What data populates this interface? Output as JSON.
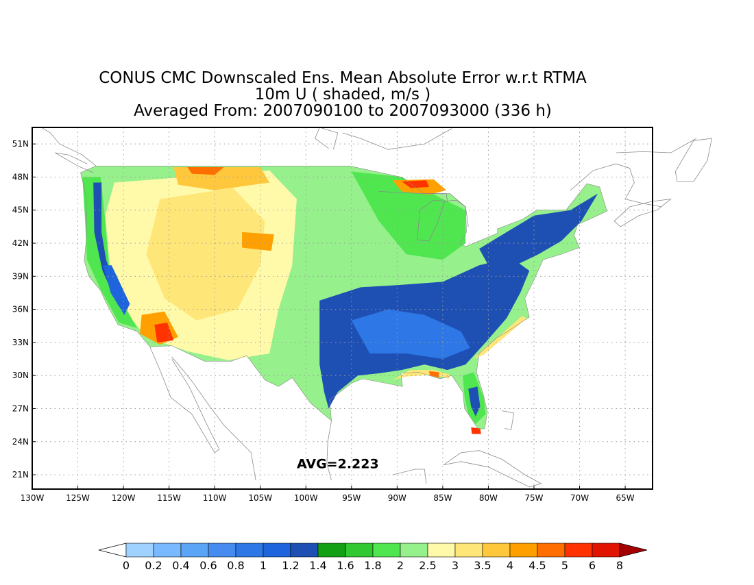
{
  "title": {
    "line1": "CONUS CMC Downscaled Ens. Mean Absolute Error w.r.t RTMA",
    "line2": "10m U ( shaded, m/s )",
    "line3": "Averaged From: 2007090100 to 2007093000 (336 h)"
  },
  "map": {
    "region": "CONUS",
    "lon_labels": [
      "130W",
      "125W",
      "120W",
      "115W",
      "110W",
      "105W",
      "100W",
      "95W",
      "90W",
      "85W",
      "80W",
      "75W",
      "70W",
      "65W"
    ],
    "lat_labels": [
      "51N",
      "48N",
      "45N",
      "42N",
      "39N",
      "36N",
      "33N",
      "30N",
      "27N",
      "24N",
      "21N"
    ],
    "lon_values": [
      -130,
      -125,
      -120,
      -115,
      -110,
      -105,
      -100,
      -95,
      -90,
      -85,
      -80,
      -75,
      -70,
      -65
    ],
    "lat_values": [
      51,
      48,
      45,
      42,
      39,
      36,
      33,
      30,
      27,
      24,
      21
    ],
    "lon_range": [
      -130,
      -62
    ],
    "lat_range": [
      19.7,
      52.5
    ],
    "grid": "dotted",
    "average_label": "AVG=2.223"
  },
  "colorbar": {
    "labels": [
      "0",
      "0.2",
      "0.4",
      "0.6",
      "0.8",
      "1",
      "1.2",
      "1.4",
      "1.6",
      "1.8",
      "2",
      "2.5",
      "3",
      "3.5",
      "4",
      "4.5",
      "5",
      "6",
      "8"
    ],
    "under_color": "#ffffff",
    "colors": [
      "#a0d2ff",
      "#78b9ff",
      "#5aa5f5",
      "#468cf0",
      "#2d78e6",
      "#1e64dc",
      "#1e50b4",
      "#14a014",
      "#32c832",
      "#50e650",
      "#96f08c",
      "#fffaaa",
      "#ffe678",
      "#ffc83c",
      "#ffa000",
      "#ff6e00",
      "#ff3200",
      "#e11400"
    ],
    "over_color": "#a50000"
  },
  "colors": {
    "frame": "#000000",
    "grid": "#9a9a9a",
    "coast": "#8a8a8a"
  }
}
